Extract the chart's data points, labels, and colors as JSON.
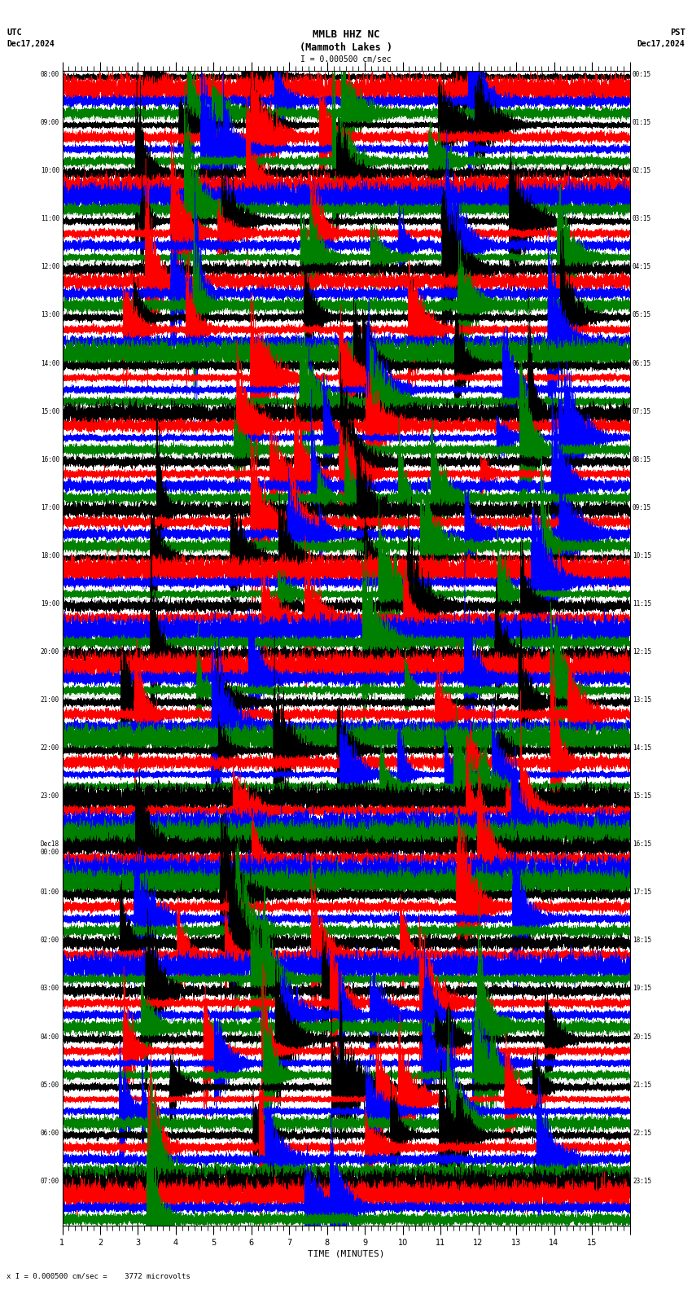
{
  "title_line1": "MMLB HHZ NC",
  "title_line2": "(Mammoth Lakes )",
  "scale_label": "I = 0.000500 cm/sec",
  "utc_label": "UTC",
  "utc_date": "Dec17,2024",
  "pst_label": "PST",
  "pst_date": "Dec17,2024",
  "bottom_label": "x I = 0.000500 cm/sec =    3772 microvolts",
  "xlabel": "TIME (MINUTES)",
  "left_times": [
    "08:00",
    "09:00",
    "10:00",
    "11:00",
    "12:00",
    "13:00",
    "14:00",
    "15:00",
    "16:00",
    "17:00",
    "18:00",
    "19:00",
    "20:00",
    "21:00",
    "22:00",
    "23:00",
    "Dec18\n00:00",
    "01:00",
    "02:00",
    "03:00",
    "04:00",
    "05:00",
    "06:00",
    "07:00"
  ],
  "right_times": [
    "00:15",
    "01:15",
    "02:15",
    "03:15",
    "04:15",
    "05:15",
    "06:15",
    "07:15",
    "08:15",
    "09:15",
    "10:15",
    "11:15",
    "12:15",
    "13:15",
    "14:15",
    "15:15",
    "16:15",
    "17:15",
    "18:15",
    "19:15",
    "20:15",
    "21:15",
    "22:15",
    "23:15"
  ],
  "num_rows": 24,
  "traces_per_row": 4,
  "minutes_per_row": 15,
  "colors": [
    "black",
    "red",
    "blue",
    "green"
  ],
  "bg_color": "white",
  "line_width": 0.35,
  "fig_width": 8.5,
  "fig_height": 15.84
}
